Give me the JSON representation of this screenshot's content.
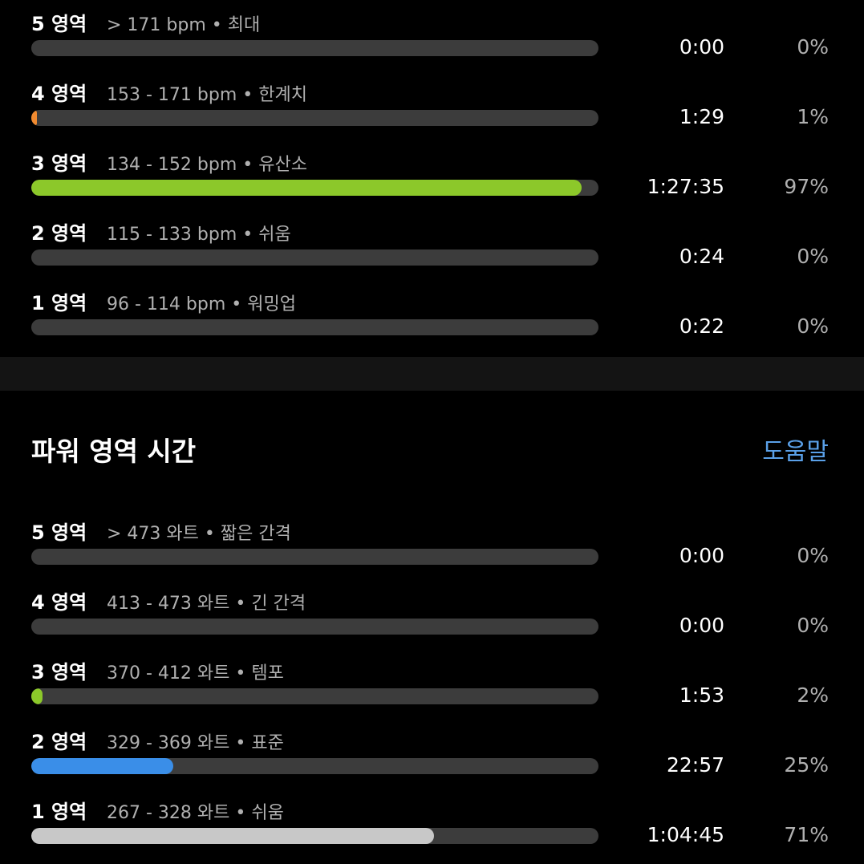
{
  "heart_zones": {
    "rows": [
      {
        "zone": "5 영역",
        "range": "> 171 bpm • 최대",
        "time": "0:00",
        "pct": 0,
        "pct_label": "0%",
        "color": "#e8453c"
      },
      {
        "zone": "4 영역",
        "range": "153 - 171 bpm • 한계치",
        "time": "1:29",
        "pct": 1,
        "pct_label": "1%",
        "color": "#f08a30"
      },
      {
        "zone": "3 영역",
        "range": "134 - 152 bpm • 유산소",
        "time": "1:27:35",
        "pct": 97,
        "pct_label": "97%",
        "color": "#8cc82a"
      },
      {
        "zone": "2 영역",
        "range": "115 - 133 bpm • 쉬움",
        "time": "0:24",
        "pct": 0,
        "pct_label": "0%",
        "color": "#3a8ee8"
      },
      {
        "zone": "1 영역",
        "range": "96 - 114 bpm • 워밍업",
        "time": "0:22",
        "pct": 0,
        "pct_label": "0%",
        "color": "#c8c8c8"
      }
    ]
  },
  "power_zones": {
    "title": "파워 영역 시간",
    "help": "도움말",
    "rows": [
      {
        "zone": "5 영역",
        "range": "> 473 와트 • 짧은 간격",
        "time": "0:00",
        "pct": 0,
        "pct_label": "0%",
        "color": "#e8453c"
      },
      {
        "zone": "4 영역",
        "range": "413 - 473 와트 • 긴 간격",
        "time": "0:00",
        "pct": 0,
        "pct_label": "0%",
        "color": "#f08a30"
      },
      {
        "zone": "3 영역",
        "range": "370 - 412 와트 • 템포",
        "time": "1:53",
        "pct": 2,
        "pct_label": "2%",
        "color": "#8cc82a"
      },
      {
        "zone": "2 영역",
        "range": "329 - 369 와트 • 표준",
        "time": "22:57",
        "pct": 25,
        "pct_label": "25%",
        "color": "#3a8ee8"
      },
      {
        "zone": "1 영역",
        "range": "267 - 328 와트 • 쉬움",
        "time": "1:04:45",
        "pct": 71,
        "pct_label": "71%",
        "color": "#c8c8c8"
      }
    ]
  }
}
